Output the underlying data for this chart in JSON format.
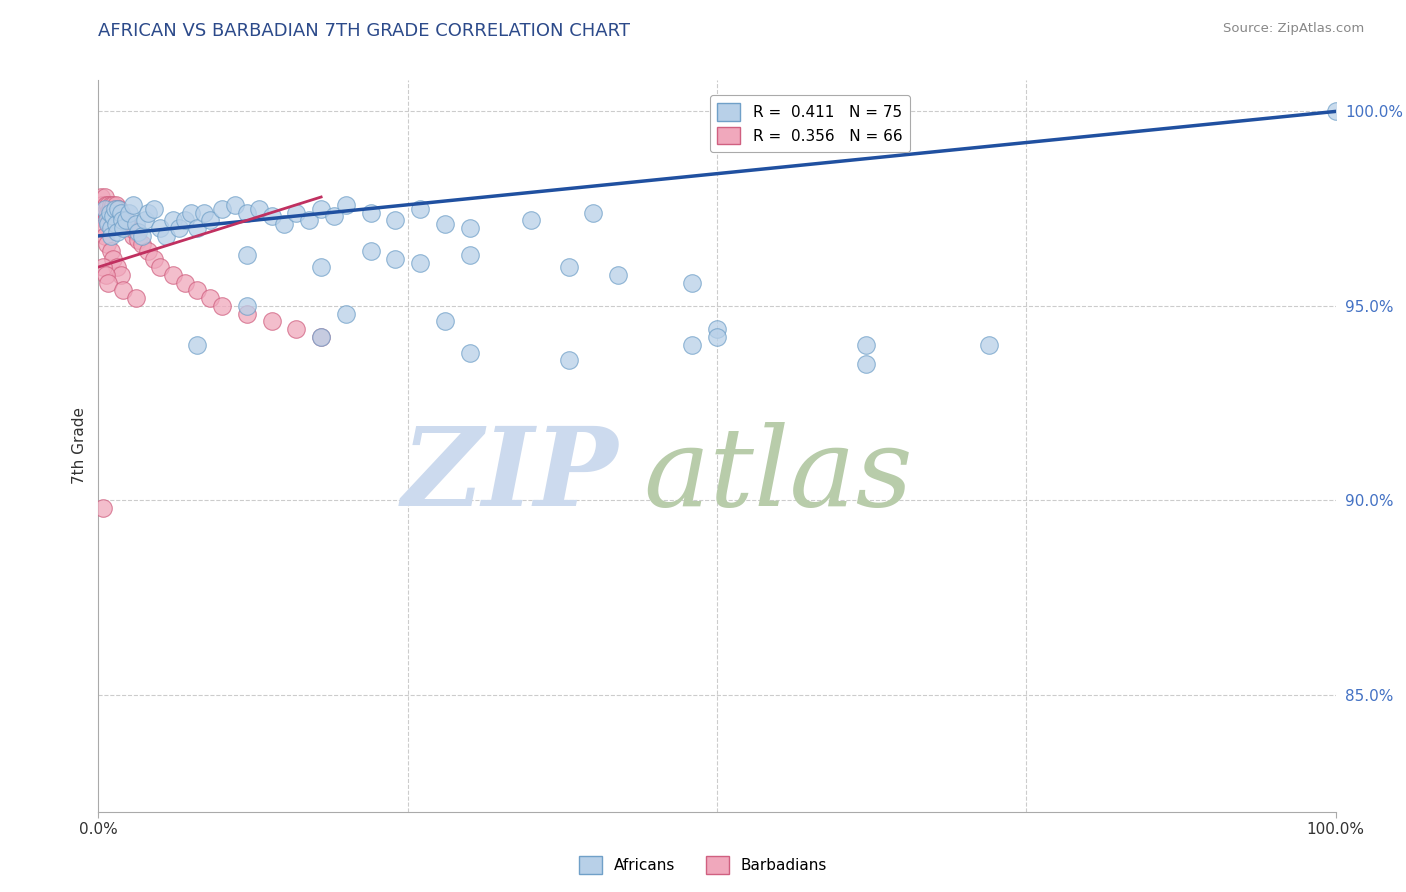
{
  "title": "AFRICAN VS BARBADIAN 7TH GRADE CORRELATION CHART",
  "source": "Source: ZipAtlas.com",
  "ylabel": "7th Grade",
  "africans_color": "#b8d0e8",
  "africans_edge": "#70a0c8",
  "barbadians_color": "#f0a8bc",
  "barbadians_edge": "#d06080",
  "african_line_color": "#2050a0",
  "barbadian_line_color": "#c03060",
  "watermark_zip_color": "#ccdaee",
  "watermark_atlas_color": "#b8ccaa",
  "xlim": [
    0.0,
    1.0
  ],
  "ylim": [
    0.82,
    1.008
  ],
  "grid_color": "#cccccc",
  "background_color": "#ffffff",
  "title_color": "#2c4a8a",
  "source_color": "#888888",
  "right_tick_color": "#4472c4",
  "africans_x": [
    0.005,
    0.007,
    0.008,
    0.009,
    0.01,
    0.01,
    0.012,
    0.013,
    0.014,
    0.015,
    0.016,
    0.018,
    0.019,
    0.02,
    0.022,
    0.025,
    0.028,
    0.03,
    0.032,
    0.035,
    0.038,
    0.04,
    0.045,
    0.05,
    0.055,
    0.06,
    0.065,
    0.07,
    0.075,
    0.08,
    0.085,
    0.09,
    0.1,
    0.11,
    0.12,
    0.13,
    0.14,
    0.15,
    0.16,
    0.17,
    0.18,
    0.19,
    0.2,
    0.22,
    0.24,
    0.26,
    0.28,
    0.3,
    0.35,
    0.4,
    0.12,
    0.18,
    0.22,
    0.24,
    0.26,
    0.3,
    0.38,
    0.42,
    0.48,
    0.12,
    0.2,
    0.28,
    0.5,
    0.62,
    0.08,
    0.18,
    0.3,
    0.38,
    0.48,
    0.5,
    0.62,
    0.72,
    1.0
  ],
  "africans_y": [
    0.975,
    0.972,
    0.971,
    0.974,
    0.97,
    0.968,
    0.973,
    0.975,
    0.971,
    0.969,
    0.975,
    0.974,
    0.972,
    0.97,
    0.972,
    0.974,
    0.976,
    0.971,
    0.969,
    0.968,
    0.972,
    0.974,
    0.975,
    0.97,
    0.968,
    0.972,
    0.97,
    0.972,
    0.974,
    0.97,
    0.974,
    0.972,
    0.975,
    0.976,
    0.974,
    0.975,
    0.973,
    0.971,
    0.974,
    0.972,
    0.975,
    0.973,
    0.976,
    0.974,
    0.972,
    0.975,
    0.971,
    0.97,
    0.972,
    0.974,
    0.963,
    0.96,
    0.964,
    0.962,
    0.961,
    0.963,
    0.96,
    0.958,
    0.956,
    0.95,
    0.948,
    0.946,
    0.944,
    0.94,
    0.94,
    0.942,
    0.938,
    0.936,
    0.94,
    0.942,
    0.935,
    0.94,
    1.0
  ],
  "barbadians_x": [
    0.002,
    0.003,
    0.004,
    0.004,
    0.005,
    0.005,
    0.005,
    0.006,
    0.006,
    0.006,
    0.007,
    0.007,
    0.008,
    0.008,
    0.009,
    0.009,
    0.01,
    0.01,
    0.01,
    0.011,
    0.011,
    0.012,
    0.012,
    0.013,
    0.013,
    0.014,
    0.015,
    0.015,
    0.016,
    0.016,
    0.017,
    0.018,
    0.019,
    0.02,
    0.02,
    0.022,
    0.025,
    0.028,
    0.03,
    0.032,
    0.035,
    0.04,
    0.045,
    0.05,
    0.06,
    0.07,
    0.08,
    0.09,
    0.1,
    0.12,
    0.14,
    0.16,
    0.18,
    0.003,
    0.005,
    0.007,
    0.01,
    0.012,
    0.015,
    0.018,
    0.004,
    0.006,
    0.008,
    0.02,
    0.03,
    0.004
  ],
  "barbadians_y": [
    0.978,
    0.976,
    0.975,
    0.973,
    0.978,
    0.975,
    0.972,
    0.976,
    0.974,
    0.972,
    0.975,
    0.973,
    0.976,
    0.974,
    0.975,
    0.973,
    0.976,
    0.974,
    0.972,
    0.975,
    0.973,
    0.976,
    0.974,
    0.975,
    0.973,
    0.976,
    0.975,
    0.973,
    0.974,
    0.972,
    0.975,
    0.974,
    0.973,
    0.972,
    0.97,
    0.972,
    0.97,
    0.968,
    0.969,
    0.967,
    0.966,
    0.964,
    0.962,
    0.96,
    0.958,
    0.956,
    0.954,
    0.952,
    0.95,
    0.948,
    0.946,
    0.944,
    0.942,
    0.97,
    0.968,
    0.966,
    0.964,
    0.962,
    0.96,
    0.958,
    0.96,
    0.958,
    0.956,
    0.954,
    0.952,
    0.898
  ],
  "af_trend_x": [
    0.0,
    1.0
  ],
  "af_trend_y": [
    0.968,
    1.0
  ],
  "bar_trend_x": [
    0.0,
    0.18
  ],
  "bar_trend_y": [
    0.96,
    0.978
  ]
}
